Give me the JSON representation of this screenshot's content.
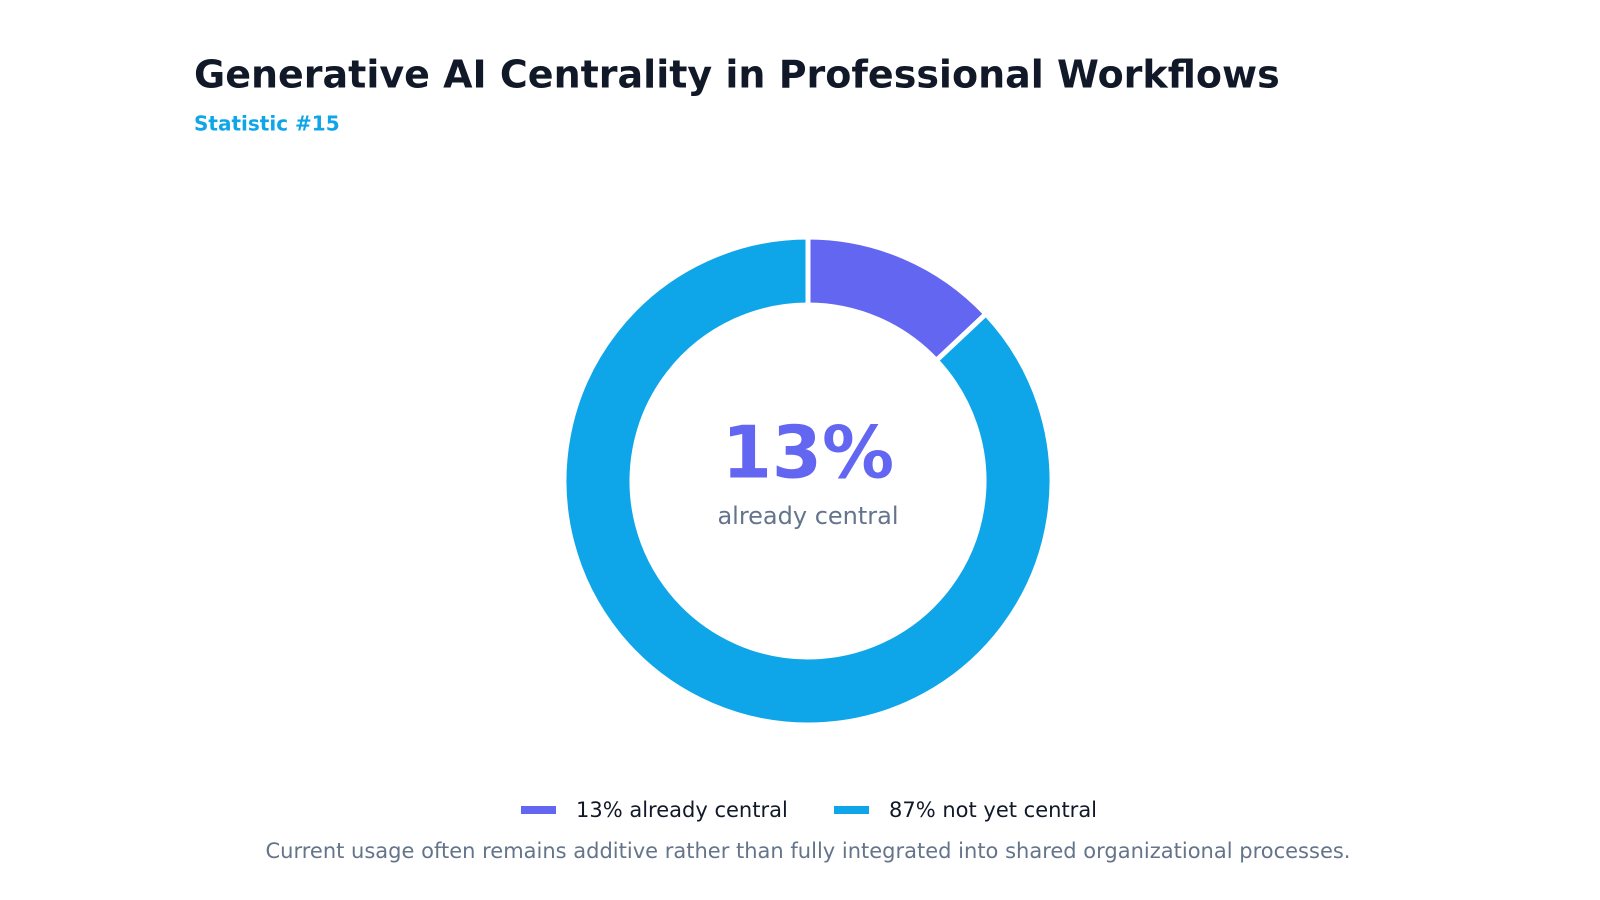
{
  "chart_data": {
    "type": "donut",
    "title": "Generative AI Centrality in Professional Workflows",
    "subtitle": "Statistic #15",
    "categories": [
      "13% already central",
      "87% not yet central"
    ],
    "values": [
      13,
      87
    ],
    "colors": [
      "#6366f1",
      "#0ea5e9"
    ],
    "center_label": "13%",
    "center_sublabel": "already central",
    "footnote": "Current usage often remains additive rather than fully integrated into shared organizational processes."
  }
}
